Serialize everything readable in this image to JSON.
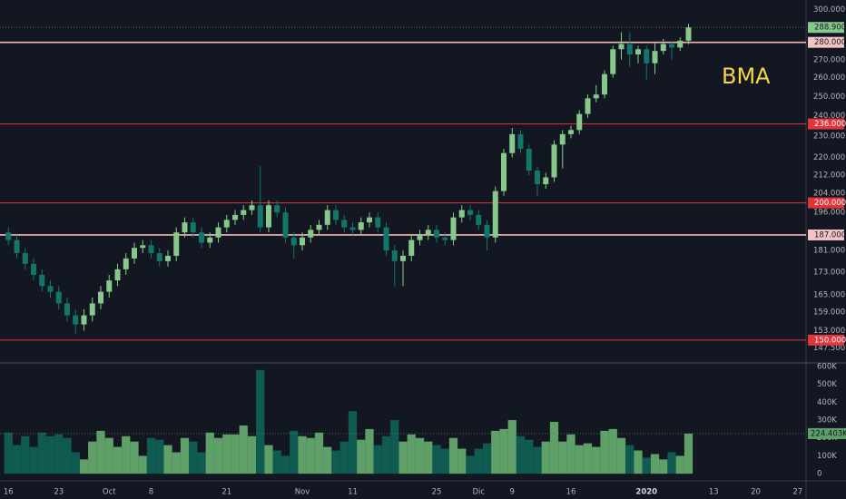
{
  "chart_data": [
    {
      "type": "candlestick",
      "annotation": "BMA",
      "log_scale": true,
      "ylim": [
        143,
        306
      ],
      "yticks": [
        {
          "value": 300,
          "label": "300.000"
        },
        {
          "value": 270,
          "label": "270.000"
        },
        {
          "value": 260,
          "label": "260.000"
        },
        {
          "value": 250,
          "label": "250.000"
        },
        {
          "value": 240,
          "label": "240.000"
        },
        {
          "value": 230,
          "label": "230.000"
        },
        {
          "value": 220,
          "label": "220.000"
        },
        {
          "value": 212,
          "label": "212.000"
        },
        {
          "value": 204,
          "label": "204.000"
        },
        {
          "value": 196,
          "label": "196.000"
        },
        {
          "value": 181,
          "label": "181.000"
        },
        {
          "value": 173,
          "label": "173.000"
        },
        {
          "value": 165,
          "label": "165.000"
        },
        {
          "value": 159,
          "label": "159.000"
        },
        {
          "value": 153,
          "label": "153.000"
        },
        {
          "value": 147.5,
          "label": "147.500"
        }
      ],
      "xlim": [
        -1,
        95
      ],
      "xticks": [
        {
          "value": 0,
          "label": "16"
        },
        {
          "value": 6,
          "label": "23"
        },
        {
          "value": 12,
          "label": "Oct"
        },
        {
          "value": 17,
          "label": "8"
        },
        {
          "value": 26,
          "label": "21"
        },
        {
          "value": 35,
          "label": "Nov"
        },
        {
          "value": 41,
          "label": "11"
        },
        {
          "value": 51,
          "label": "25"
        },
        {
          "value": 56,
          "label": "Dic"
        },
        {
          "value": 60,
          "label": "9"
        },
        {
          "value": 67,
          "label": "16"
        },
        {
          "value": 76,
          "label": "2020"
        },
        {
          "value": 84,
          "label": "13"
        },
        {
          "value": 89,
          "label": "20"
        },
        {
          "value": 94,
          "label": "27"
        }
      ],
      "up_color": "#86c98a",
      "down_color": "#13766a",
      "hlines": [
        {
          "value": 280,
          "label": "280.000",
          "color": "#f2b8b8"
        },
        {
          "value": 236,
          "label": "236.000",
          "color": "#e0353a"
        },
        {
          "value": 200,
          "label": "200.000",
          "color": "#e0353a"
        },
        {
          "value": 187,
          "label": "187.000",
          "color": "#f2b8b8"
        },
        {
          "value": 150,
          "label": "150.000",
          "color": "#e0353a"
        }
      ],
      "last_price": {
        "value": 288.9,
        "label": "288.900"
      },
      "open": [
        188,
        185,
        180,
        176,
        172,
        168,
        166,
        162,
        158,
        155,
        158,
        162,
        166,
        170,
        174,
        178,
        182,
        183,
        180,
        177,
        179,
        188,
        192,
        188,
        184,
        186,
        190,
        193,
        195,
        197,
        199,
        190,
        199,
        196,
        186,
        183,
        186,
        189,
        191,
        197,
        193,
        190,
        189,
        192,
        194,
        190,
        181,
        177,
        179,
        185,
        187,
        189,
        186,
        185,
        194,
        197,
        195,
        191,
        186,
        205,
        222,
        231,
        224,
        214,
        208,
        211,
        226,
        231,
        233,
        241,
        249,
        251,
        262,
        276,
        279,
        273,
        276,
        268,
        275,
        279,
        277,
        281
      ],
      "high": [
        190,
        187,
        182,
        178,
        174,
        170,
        168,
        164,
        160,
        160,
        164,
        168,
        172,
        176,
        180,
        184,
        185,
        185,
        182,
        181,
        190,
        194,
        194,
        190,
        188,
        192,
        195,
        197,
        199,
        201,
        216,
        201,
        201,
        198,
        188,
        188,
        191,
        193,
        199,
        199,
        195,
        192,
        194,
        196,
        196,
        192,
        183,
        181,
        187,
        189,
        191,
        191,
        188,
        196,
        199,
        199,
        197,
        193,
        207,
        224,
        234,
        233,
        226,
        216,
        213,
        228,
        233,
        235,
        243,
        251,
        256,
        264,
        278,
        286,
        286,
        278,
        278,
        280,
        282,
        281,
        283,
        291
      ],
      "low": [
        183,
        178,
        174,
        170,
        166,
        164,
        160,
        156,
        152,
        153,
        156,
        160,
        164,
        168,
        172,
        176,
        180,
        178,
        175,
        175,
        177,
        186,
        186,
        182,
        182,
        184,
        188,
        191,
        193,
        195,
        188,
        188,
        194,
        184,
        178,
        181,
        184,
        187,
        189,
        191,
        188,
        187,
        187,
        190,
        188,
        179,
        168,
        168,
        177,
        183,
        185,
        184,
        183,
        183,
        192,
        193,
        189,
        181,
        184,
        203,
        220,
        222,
        212,
        203,
        206,
        209,
        215,
        229,
        231,
        239,
        247,
        249,
        260,
        270,
        266,
        268,
        259,
        262,
        273,
        270,
        275,
        279
      ],
      "close": [
        185,
        180,
        176,
        172,
        168,
        166,
        162,
        158,
        155,
        158,
        162,
        166,
        170,
        174,
        178,
        182,
        183,
        180,
        177,
        179,
        188,
        192,
        188,
        184,
        186,
        190,
        193,
        195,
        197,
        199,
        190,
        199,
        196,
        186,
        183,
        186,
        189,
        191,
        197,
        193,
        190,
        189,
        192,
        194,
        190,
        181,
        177,
        179,
        185,
        187,
        189,
        186,
        185,
        194,
        197,
        195,
        191,
        186,
        205,
        222,
        231,
        224,
        214,
        208,
        211,
        226,
        231,
        233,
        241,
        249,
        251,
        262,
        276,
        279,
        273,
        276,
        268,
        275,
        279,
        277,
        281,
        288.9
      ]
    },
    {
      "type": "bar",
      "ylim": [
        -40000,
        620000
      ],
      "yticks": [
        {
          "value": 600000,
          "label": "600K"
        },
        {
          "value": 500000,
          "label": "500K"
        },
        {
          "value": 400000,
          "label": "400K"
        },
        {
          "value": 300000,
          "label": "300K"
        },
        {
          "value": 200000,
          "label": "200K"
        },
        {
          "value": 100000,
          "label": "100K"
        },
        0
      ],
      "up_color": "#5f9f68",
      "down_color": "#0f5a51",
      "values": [
        230000,
        160000,
        210000,
        150000,
        230000,
        210000,
        220000,
        200000,
        120000,
        80000,
        180000,
        240000,
        200000,
        150000,
        210000,
        180000,
        100000,
        200000,
        190000,
        160000,
        120000,
        200000,
        180000,
        120000,
        230000,
        200000,
        220000,
        220000,
        270000,
        210000,
        580000,
        160000,
        130000,
        100000,
        240000,
        210000,
        200000,
        230000,
        150000,
        130000,
        180000,
        350000,
        190000,
        250000,
        160000,
        210000,
        300000,
        180000,
        220000,
        200000,
        180000,
        160000,
        140000,
        200000,
        140000,
        100000,
        140000,
        170000,
        240000,
        250000,
        300000,
        210000,
        190000,
        150000,
        180000,
        290000,
        180000,
        220000,
        160000,
        170000,
        150000,
        240000,
        250000,
        200000,
        160000,
        130000,
        90000,
        110000,
        80000,
        120000,
        100000,
        224403
      ],
      "value_labels": [
        null,
        null,
        null,
        null,
        null,
        null,
        null,
        null,
        null,
        null,
        null,
        null,
        null,
        null,
        null,
        null,
        null,
        null,
        null,
        null,
        null,
        null,
        null,
        null,
        null,
        null,
        null,
        null,
        null,
        null,
        null,
        null,
        null,
        null,
        null,
        null,
        null,
        null,
        null,
        null,
        null,
        null,
        null,
        null,
        null,
        null,
        null,
        null,
        null,
        null,
        null,
        null,
        null,
        null,
        null,
        null,
        null,
        null,
        null,
        null,
        null,
        null,
        null,
        null,
        null,
        null,
        null,
        null,
        null,
        null,
        null,
        null,
        null,
        null,
        null,
        null,
        null,
        null,
        null,
        null,
        null,
        "224.403K"
      ]
    }
  ]
}
